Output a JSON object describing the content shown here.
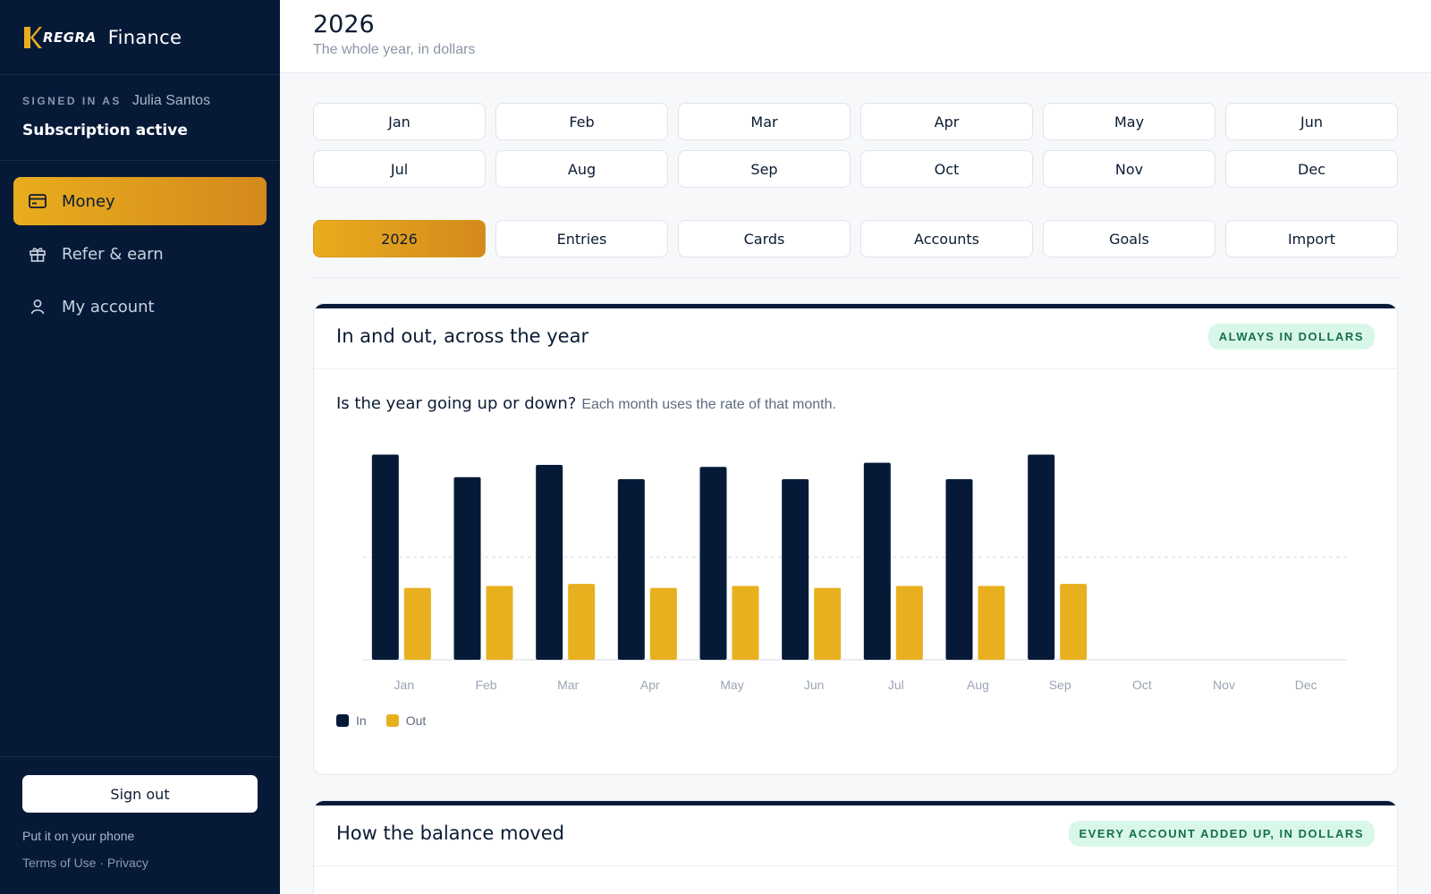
{
  "brand": {
    "logo_text": "REGRA",
    "app_name": "Finance"
  },
  "user": {
    "signed_in_label": "SIGNED IN AS",
    "name": "Julia Santos",
    "subscription": "Subscription active"
  },
  "nav": [
    {
      "label": "Money",
      "icon": "card-icon",
      "active": true
    },
    {
      "label": "Refer & earn",
      "icon": "gift-icon",
      "active": false
    },
    {
      "label": "My account",
      "icon": "user-icon",
      "active": false
    }
  ],
  "sidebar_footer": {
    "signout": "Sign out",
    "phone": "Put it on your phone",
    "terms": "Terms of Use",
    "separator": "·",
    "privacy": "Privacy"
  },
  "header": {
    "title": "2026",
    "subtitle": "The whole year, in dollars"
  },
  "months": [
    "Jan",
    "Feb",
    "Mar",
    "Apr",
    "May",
    "Jun",
    "Jul",
    "Aug",
    "Sep",
    "Oct",
    "Nov",
    "Dec"
  ],
  "tabs": [
    {
      "label": "2026",
      "active": true
    },
    {
      "label": "Entries",
      "active": false
    },
    {
      "label": "Cards",
      "active": false
    },
    {
      "label": "Accounts",
      "active": false
    },
    {
      "label": "Goals",
      "active": false
    },
    {
      "label": "Import",
      "active": false
    }
  ],
  "card1": {
    "title": "In and out, across the year",
    "badge": "ALWAYS IN DOLLARS",
    "question": "Is the year going up or down?",
    "note": "Each month uses the rate of that month."
  },
  "card2": {
    "title": "How the balance moved",
    "badge": "EVERY ACCOUNT ADDED UP, IN DOLLARS"
  },
  "colors": {
    "navy": "#061a38",
    "gold": "#e8b01e",
    "accent_start": "#e8ad1d",
    "accent_end": "#d4891d",
    "badge_bg": "#d9f7e8",
    "badge_text": "#15704a"
  },
  "chart_data": {
    "type": "bar",
    "categories": [
      "Jan",
      "Feb",
      "Mar",
      "Apr",
      "May",
      "Jun",
      "Jul",
      "Aug",
      "Sep",
      "Oct",
      "Nov",
      "Dec"
    ],
    "series": [
      {
        "name": "In",
        "color": "#061a38",
        "values": [
          100,
          89,
          95,
          88,
          94,
          88,
          96,
          88,
          100,
          null,
          null,
          null
        ]
      },
      {
        "name": "Out",
        "color": "#e8b01e",
        "values": [
          35,
          36,
          37,
          35,
          36,
          35,
          36,
          36,
          37,
          null,
          null,
          null
        ]
      }
    ],
    "ylim": [
      0,
      105
    ],
    "reference_line": 50,
    "legend_position": "bottom-left",
    "grid": false
  }
}
